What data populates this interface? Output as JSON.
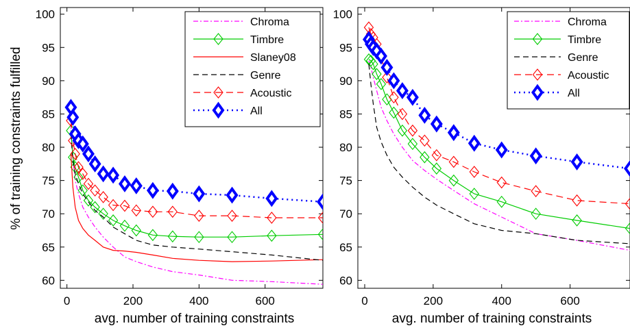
{
  "ylabel": "% of training constraints fulfilled",
  "chart_data": [
    {
      "type": "line",
      "xlabel": "avg. number of training constraints",
      "xlim": [
        -20,
        775
      ],
      "ylim": [
        58.8,
        101
      ],
      "xticks": [
        0,
        200,
        400,
        600
      ],
      "yticks": [
        60,
        65,
        70,
        75,
        80,
        85,
        90,
        95,
        100
      ],
      "grid": false,
      "legend_position": "top-right",
      "series": [
        {
          "name": "Chroma",
          "color": "#ff00ff",
          "dash": "7 3 2 3",
          "marker": "none",
          "x": [
            12,
            18,
            25,
            35,
            48,
            65,
            85,
            110,
            140,
            175,
            210,
            260,
            320,
            400,
            500,
            620,
            775
          ],
          "y": [
            83.5,
            78.5,
            75,
            73,
            71,
            69.5,
            68,
            66.5,
            65,
            63.5,
            62.8,
            62,
            61.3,
            60.8,
            60,
            59.8,
            59.4
          ]
        },
        {
          "name": "Timbre",
          "color": "#00cc00",
          "dash": "",
          "marker": "diamond-open",
          "x": [
            12,
            18,
            25,
            35,
            48,
            65,
            85,
            110,
            140,
            175,
            210,
            260,
            320,
            400,
            500,
            620,
            775
          ],
          "y": [
            82.5,
            78.5,
            77,
            75.5,
            73.5,
            72,
            71,
            70,
            69,
            68.2,
            67.5,
            66.8,
            66.6,
            66.5,
            66.5,
            66.7,
            66.9
          ]
        },
        {
          "name": "Slaney08",
          "color": "#ff0000",
          "dash": "",
          "marker": "none",
          "x": [
            12,
            18,
            25,
            35,
            48,
            65,
            85,
            110,
            140,
            175,
            210,
            260,
            320,
            400,
            500,
            620,
            775
          ],
          "y": [
            79,
            74,
            71,
            69,
            67.8,
            66.8,
            66,
            65,
            64.5,
            64.4,
            64.2,
            63.8,
            63.3,
            63,
            62.8,
            62.9,
            63.1
          ]
        },
        {
          "name": "Genre",
          "color": "#000000",
          "dash": "8 5",
          "marker": "none",
          "x": [
            12,
            18,
            25,
            35,
            48,
            65,
            85,
            110,
            140,
            175,
            210,
            260,
            320,
            400,
            500,
            620,
            775
          ],
          "y": [
            82,
            78,
            76,
            74.5,
            73,
            71.8,
            70.5,
            69.5,
            68,
            67,
            66,
            65.3,
            65,
            64.7,
            64.3,
            63.8,
            63
          ]
        },
        {
          "name": "Acoustic",
          "color": "#ff0000",
          "dash": "10 6",
          "marker": "diamond-open",
          "x": [
            12,
            18,
            25,
            35,
            48,
            65,
            85,
            110,
            140,
            175,
            210,
            260,
            320,
            400,
            500,
            620,
            775
          ],
          "y": [
            84,
            81,
            79,
            77,
            76,
            74.5,
            73.5,
            72.5,
            71.3,
            71.2,
            70.5,
            70.3,
            70.3,
            69.7,
            69.7,
            69.4,
            69.4
          ]
        },
        {
          "name": "All",
          "color": "#0000ff",
          "dash": "2 5",
          "marker": "diamond-filled",
          "x": [
            12,
            18,
            25,
            35,
            48,
            65,
            85,
            110,
            140,
            175,
            210,
            260,
            320,
            400,
            500,
            620,
            775
          ],
          "y": [
            86,
            84.5,
            82,
            81,
            80.5,
            79,
            77.5,
            76,
            75.8,
            74.5,
            74.2,
            73.5,
            73.4,
            73,
            72.8,
            72.3,
            71.8
          ]
        }
      ]
    },
    {
      "type": "line",
      "xlabel": "avg. number of training constraints",
      "xlim": [
        -20,
        775
      ],
      "ylim": [
        58.8,
        101
      ],
      "xticks": [
        0,
        200,
        400,
        600
      ],
      "yticks": [
        60,
        65,
        70,
        75,
        80,
        85,
        90,
        95,
        100
      ],
      "grid": false,
      "legend_position": "top-right",
      "series": [
        {
          "name": "Chroma",
          "color": "#ff00ff",
          "dash": "7 3 2 3",
          "marker": "none",
          "x": [
            12,
            18,
            25,
            35,
            48,
            65,
            85,
            110,
            140,
            175,
            210,
            260,
            320,
            400,
            500,
            620,
            775
          ],
          "y": [
            93,
            92,
            90.5,
            88.5,
            86,
            84,
            82,
            80,
            78,
            76.5,
            75.2,
            73.5,
            71.5,
            69.5,
            67,
            66,
            64.5
          ]
        },
        {
          "name": "Timbre",
          "color": "#00cc00",
          "dash": "",
          "marker": "diamond-open",
          "x": [
            12,
            18,
            25,
            35,
            48,
            65,
            85,
            110,
            140,
            175,
            210,
            260,
            320,
            400,
            500,
            620,
            775
          ],
          "y": [
            93.2,
            93,
            92.5,
            91,
            89.5,
            87.2,
            85.2,
            82.5,
            80.5,
            78.5,
            76.8,
            75,
            73,
            71.8,
            70,
            69,
            67.8
          ]
        },
        {
          "name": "Genre",
          "color": "#000000",
          "dash": "8 5",
          "marker": "none",
          "x": [
            12,
            18,
            25,
            35,
            48,
            65,
            85,
            110,
            140,
            175,
            210,
            260,
            320,
            400,
            500,
            620,
            775
          ],
          "y": [
            92.5,
            89.5,
            86.5,
            83,
            80.8,
            78.8,
            77,
            75.5,
            74,
            72.5,
            71.3,
            70,
            68.5,
            67.5,
            67,
            66,
            65.5
          ]
        },
        {
          "name": "Acoustic",
          "color": "#ff0000",
          "dash": "10 6",
          "marker": "diamond-open",
          "x": [
            12,
            18,
            25,
            35,
            48,
            65,
            85,
            110,
            140,
            175,
            210,
            260,
            320,
            400,
            500,
            620,
            775
          ],
          "y": [
            98,
            97,
            96.5,
            95.5,
            93.5,
            90.5,
            87.5,
            85,
            82.5,
            81,
            78.8,
            77.8,
            76.3,
            74.7,
            73.4,
            72,
            71.5
          ]
        },
        {
          "name": "All",
          "color": "#0000ff",
          "dash": "2 5",
          "marker": "diamond-filled",
          "x": [
            12,
            18,
            25,
            35,
            48,
            65,
            85,
            110,
            140,
            175,
            210,
            260,
            320,
            400,
            500,
            620,
            775
          ],
          "y": [
            96.2,
            95.5,
            95,
            94.5,
            93.7,
            92,
            90,
            88.5,
            87.5,
            84.8,
            83.5,
            82.2,
            80.6,
            79.6,
            78.7,
            77.8,
            76.8
          ]
        }
      ]
    }
  ]
}
